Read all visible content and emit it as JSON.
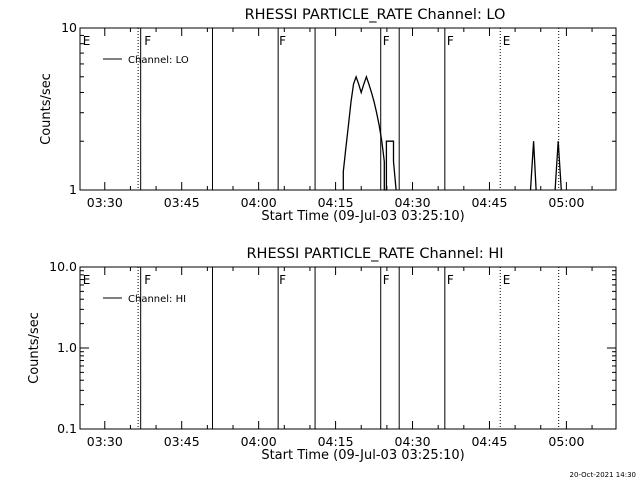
{
  "chart_data": [
    {
      "type": "line",
      "title": "RHESSI PARTICLE_RATE Channel: LO",
      "xlabel": "Start Time (09-Jul-03 03:25:10)",
      "ylabel": "Counts/sec",
      "x_tick_labels": [
        "03:30",
        "03:45",
        "04:00",
        "04:15",
        "04:30",
        "04:45",
        "05:00"
      ],
      "x_ticks_min": [
        30,
        45,
        60,
        75,
        90,
        105,
        120
      ],
      "xlim_min": [
        25.17,
        129.67
      ],
      "yscale": "log",
      "ylim": [
        1,
        10
      ],
      "y_tick_labels": [
        "1",
        "10"
      ],
      "y_ticks": [
        1,
        10
      ],
      "legend": "Channel: LO",
      "legend_position": "top-left",
      "markers_solid_min": [
        37.0,
        51.0,
        63.8,
        71.0,
        83.8,
        87.4,
        96.3
      ],
      "markers_dotted_min": [
        36.5,
        107.1,
        118.5
      ],
      "marker_letters": [
        {
          "text": "E",
          "t": 25.5
        },
        {
          "text": "F",
          "t": 37.5
        },
        {
          "text": "F",
          "t": 63.8
        },
        {
          "text": "F",
          "t": 84.0
        },
        {
          "text": "F",
          "t": 96.5
        },
        {
          "text": "E",
          "t": 107.4
        }
      ],
      "series": [
        {
          "name": "Channel: LO",
          "points": [
            [
              76.5,
              1.0
            ],
            [
              76.5,
              1.3
            ],
            [
              77.0,
              1.8
            ],
            [
              77.5,
              2.5
            ],
            [
              78.0,
              3.5
            ],
            [
              78.5,
              4.5
            ],
            [
              79.0,
              5.0
            ],
            [
              79.5,
              4.5
            ],
            [
              80.0,
              4.0
            ],
            [
              80.5,
              4.5
            ],
            [
              81.0,
              5.0
            ],
            [
              81.5,
              4.5
            ],
            [
              82.0,
              4.0
            ],
            [
              82.5,
              3.5
            ],
            [
              83.0,
              3.0
            ],
            [
              83.5,
              2.5
            ],
            [
              84.0,
              2.0
            ],
            [
              84.5,
              1.5
            ],
            [
              84.5,
              1.0
            ],
            [
              84.9,
              1.0
            ],
            [
              84.9,
              2.0
            ],
            [
              86.3,
              2.0
            ],
            [
              86.3,
              1.5
            ],
            [
              86.8,
              1.0
            ]
          ]
        },
        {
          "name": "Channel: LO",
          "points": [
            [
              113.0,
              1.0
            ],
            [
              113.6,
              2.0
            ],
            [
              114.1,
              1.0
            ]
          ]
        },
        {
          "name": "Channel: LO",
          "points": [
            [
              117.8,
              1.0
            ],
            [
              118.4,
              2.0
            ],
            [
              119.0,
              1.0
            ]
          ]
        }
      ]
    },
    {
      "type": "line",
      "title": "RHESSI PARTICLE_RATE Channel: HI",
      "xlabel": "Start Time (09-Jul-03 03:25:10)",
      "ylabel": "Counts/sec",
      "x_tick_labels": [
        "03:30",
        "03:45",
        "04:00",
        "04:15",
        "04:30",
        "04:45",
        "05:00"
      ],
      "x_ticks_min": [
        30,
        45,
        60,
        75,
        90,
        105,
        120
      ],
      "xlim_min": [
        25.17,
        129.67
      ],
      "yscale": "log",
      "ylim": [
        0.1,
        10
      ],
      "y_tick_labels": [
        "0.1",
        "1.0",
        "10.0"
      ],
      "y_ticks": [
        0.1,
        1,
        10
      ],
      "legend": "Channel: HI",
      "legend_position": "top-left",
      "markers_solid_min": [
        37.0,
        51.0,
        63.8,
        71.0,
        83.8,
        87.4,
        96.3
      ],
      "markers_dotted_min": [
        36.5,
        107.1,
        118.5
      ],
      "marker_letters": [
        {
          "text": "E",
          "t": 25.5
        },
        {
          "text": "F",
          "t": 37.5
        },
        {
          "text": "F",
          "t": 63.8
        },
        {
          "text": "F",
          "t": 84.0
        },
        {
          "text": "F",
          "t": 96.5
        },
        {
          "text": "E",
          "t": 107.4
        }
      ],
      "series": []
    }
  ],
  "footer_timestamp": "20-Oct-2021 14:30"
}
